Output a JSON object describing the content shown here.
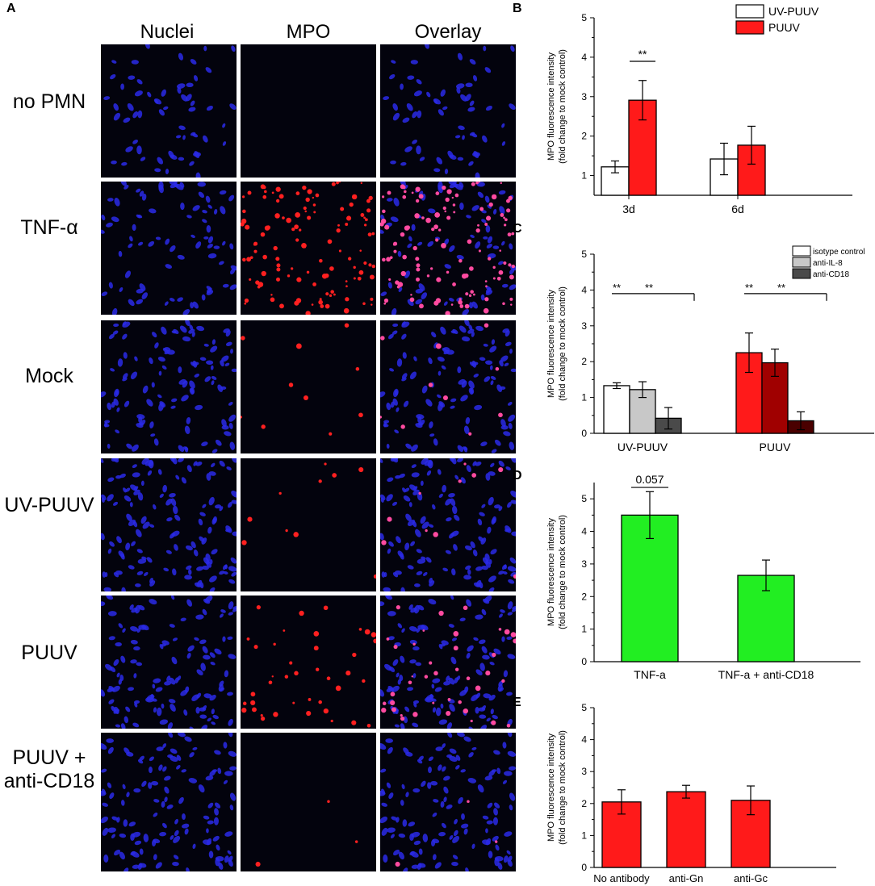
{
  "panel_A": {
    "letter": "A",
    "columns": [
      "Nuclei",
      "MPO",
      "Overlay"
    ],
    "rows": [
      {
        "label": "no PMN",
        "nuclei_density": 60,
        "mpo_spots": 0
      },
      {
        "label": "TNF-α",
        "nuclei_density": 80,
        "mpo_spots": 120
      },
      {
        "label": "Mock",
        "nuclei_density": 110,
        "mpo_spots": 10
      },
      {
        "label": "UV-PUUV",
        "nuclei_density": 130,
        "mpo_spots": 10
      },
      {
        "label": "PUUV",
        "nuclei_density": 120,
        "mpo_spots": 40
      },
      {
        "label": "PUUV +\nanti-CD18",
        "nuclei_density": 120,
        "mpo_spots": 3
      }
    ],
    "colors": {
      "nucleus": "#2a2ae8",
      "mpo": "#ff2020",
      "background": "#03030d"
    }
  },
  "chart_data": [
    {
      "panel": "B",
      "type": "bar",
      "ylabel_line1": "MPO fluorescence intensity",
      "ylabel_line2": "(fold change to mock control)",
      "ylim": [
        0.5,
        5
      ],
      "yticks": [
        "1",
        "2",
        "3",
        "4",
        "5"
      ],
      "categories": [
        "3d",
        "6d"
      ],
      "series": [
        {
          "name": "UV-PUUV",
          "color": "#ffffff",
          "values": [
            1.22,
            1.42
          ],
          "errors": [
            0.15,
            0.4
          ]
        },
        {
          "name": "PUUV",
          "color": "#ff1a1a",
          "values": [
            2.91,
            1.77
          ],
          "errors": [
            0.5,
            0.48
          ]
        }
      ],
      "legend_position": "top-right",
      "annotations": [
        {
          "text": "**",
          "category": 0
        }
      ]
    },
    {
      "panel": "C",
      "type": "bar",
      "ylabel_line1": "MPO fluorescence intensity",
      "ylabel_line2": "(fold change to mock control)",
      "ylim": [
        0,
        5
      ],
      "yticks": [
        "0",
        "1",
        "2",
        "3",
        "4",
        "5"
      ],
      "categories": [
        "UV-PUUV",
        "PUUV"
      ],
      "series": [
        {
          "name": "isotype control",
          "values": [
            1.33,
            2.25
          ],
          "errors": [
            0.08,
            0.55
          ]
        },
        {
          "name": "anti-IL-8",
          "values": [
            1.22,
            1.97
          ],
          "errors": [
            0.22,
            0.38
          ]
        },
        {
          "name": "anti-CD18",
          "values": [
            0.42,
            0.35
          ],
          "errors": [
            0.3,
            0.25
          ]
        }
      ],
      "bar_colors": [
        [
          "#ffffff",
          "#c8c8c8",
          "#4a4a4a"
        ],
        [
          "#ff1a1a",
          "#a00000",
          "#4a0000"
        ]
      ],
      "legend_colors": [
        "#ffffff",
        "#c8c8c8",
        "#4a4a4a"
      ],
      "legend_position": "top-right",
      "annotations": [
        {
          "text": "**",
          "category": 0
        },
        {
          "text": "**",
          "category": 0
        },
        {
          "text": "**",
          "category": 1
        },
        {
          "text": "**",
          "category": 1
        }
      ]
    },
    {
      "panel": "D",
      "type": "bar",
      "ylabel_line1": "MPO fluorescence intensity",
      "ylabel_line2": "(fold change to mock control)",
      "ylim": [
        0,
        5.5
      ],
      "yticks": [
        "0",
        "1",
        "2",
        "3",
        "4",
        "5"
      ],
      "categories": [
        "TNF-a",
        "TNF-a + anti-CD18"
      ],
      "values": [
        4.5,
        2.65
      ],
      "errors": [
        0.72,
        0.47
      ],
      "color": "#22ee22",
      "annotations": [
        {
          "text": "0.057",
          "category": 0
        }
      ]
    },
    {
      "panel": "E",
      "type": "bar",
      "ylabel_line1": "MPO fluorescence intensity",
      "ylabel_line2": "(fold change to mock control)",
      "ylim": [
        0,
        5
      ],
      "yticks": [
        "0",
        "1",
        "2",
        "3",
        "4",
        "5"
      ],
      "categories": [
        "No antibody",
        "anti-Gn",
        "anti-Gc"
      ],
      "values": [
        2.05,
        2.37,
        2.1
      ],
      "errors": [
        0.38,
        0.2,
        0.45
      ],
      "color": "#ff1a1a"
    }
  ]
}
